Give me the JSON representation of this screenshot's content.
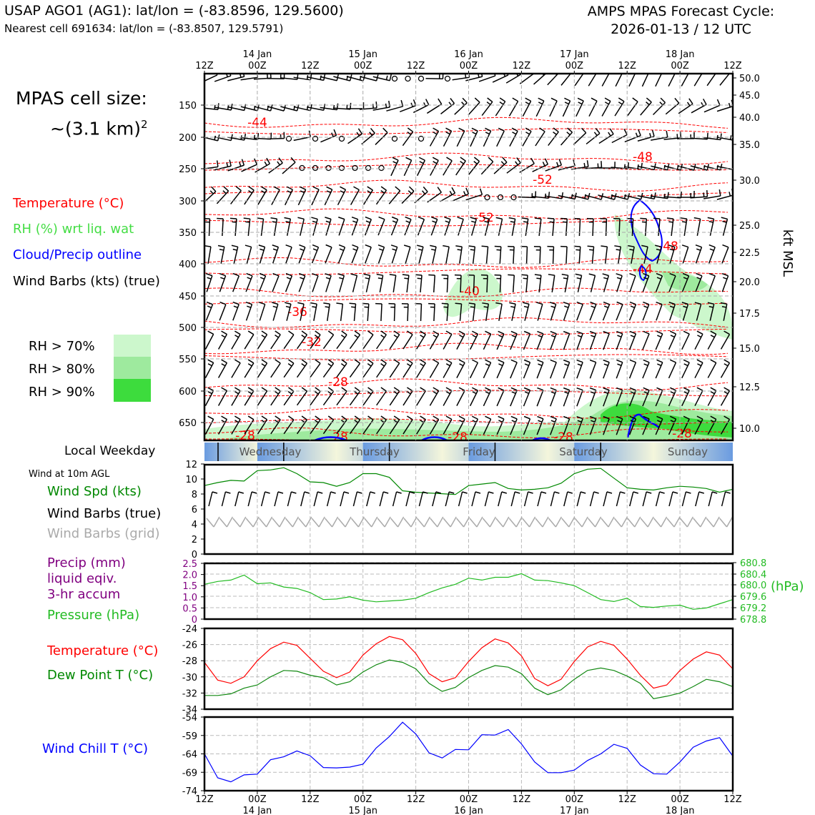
{
  "header": {
    "station": "USAP AGO1 (AG1): lat/lon = (-83.8596, 129.5600)",
    "nearest": "Nearest cell 691634: lat/lon = (-83.8507, 129.5791)",
    "cycle_line1": "AMPS MPAS Forecast Cycle:",
    "cycle_line2": "2026-01-13 / 12 UTC"
  },
  "cell_size": {
    "line1": "MPAS cell size:",
    "line2": "~(3.1 km)",
    "sup": "2"
  },
  "legend": {
    "temperature": "Temperature (°C)",
    "rh": "RH (%) wrt liq. wat",
    "cloud": "Cloud/Precip outline",
    "barbs": "Wind Barbs (kts) (true)",
    "rh70": "RH > 70%",
    "rh80": "RH > 80%",
    "rh90": "RH > 90%"
  },
  "colors": {
    "temp": "#ff0000",
    "rh": "#44dd44",
    "cloud": "#0000ff",
    "rh70": "#ccf7cc",
    "rh80": "#9eea9e",
    "rh90": "#3ddc3d",
    "dew": "#118811",
    "pressure": "#22bb22",
    "chill": "#0000ff",
    "precip": "#800080"
  },
  "time_axis": {
    "top_labels": [
      "12Z",
      "00Z",
      "12Z",
      "00Z",
      "12Z",
      "00Z",
      "12Z",
      "00Z",
      "12Z",
      "00Z",
      "12Z"
    ],
    "days": [
      "14 Jan",
      "15 Jan",
      "16 Jan",
      "17 Jan",
      "18 Jan"
    ]
  },
  "profile": {
    "pressure_ticks": [
      "150",
      "200",
      "250",
      "300",
      "350",
      "400",
      "450",
      "500",
      "550",
      "600",
      "650"
    ],
    "kft_ticks": [
      "50.0",
      "45.0",
      "40.0",
      "35.0",
      "30.0",
      "25.0",
      "22.5",
      "20.0",
      "17.5",
      "15.0",
      "12.5",
      "10.0"
    ],
    "kft_label": "kft MSL",
    "temp_labels": [
      "-44",
      "-48",
      "-52",
      "-52",
      "-48",
      "-44",
      "-40",
      "-36",
      "-32",
      "-28",
      "-28",
      "-28",
      "-28",
      "-28",
      "-28"
    ]
  },
  "weekday": {
    "label": "Local Weekday",
    "days": [
      "Wednesday",
      "Thursday",
      "Friday",
      "Saturday",
      "Sunday"
    ]
  },
  "panels": {
    "wind": {
      "title": "Wind at 10m AGL",
      "spd_label": "Wind Spd (kts)",
      "barbs_true": "Wind Barbs (true)",
      "barbs_grid": "Wind Barbs (grid)",
      "yticks": [
        "12",
        "10",
        "8",
        "6",
        "4",
        "2",
        "0"
      ]
    },
    "precip": {
      "label1": "Precip (mm)",
      "label2": "liquid eqiv.",
      "label3": "3-hr accum",
      "pressure_label": "Pressure (hPa)",
      "left_ticks": [
        "2.5",
        "2.0",
        "1.5",
        "1.0",
        "0.5",
        "0"
      ],
      "right_ticks": [
        "680.8",
        "680.4",
        "680.0",
        "679.6",
        "679.2",
        "678.8"
      ],
      "right_unit": "(hPa)"
    },
    "temp": {
      "temp_label": "Temperature (°C)",
      "dew_label": "Dew Point T (°C)",
      "yticks": [
        "-24",
        "-26",
        "-28",
        "-30",
        "-32",
        "-34"
      ]
    },
    "chill": {
      "label": "Wind Chill T (°C)",
      "yticks": [
        "-54",
        "-59",
        "-64",
        "-69",
        "-74"
      ]
    }
  },
  "chart_data": [
    {
      "type": "line",
      "title": "Wind Spd (kts)",
      "x_hours": [
        0,
        3,
        6,
        9,
        12,
        15,
        18,
        21,
        24,
        27,
        30,
        33,
        36,
        39,
        42,
        45,
        48,
        51,
        54,
        57,
        60,
        63,
        66,
        69,
        72,
        75,
        78,
        81,
        84,
        87,
        90,
        93,
        96,
        99,
        102,
        105,
        108,
        111,
        114,
        117,
        120
      ],
      "ylim": [
        0,
        12
      ],
      "series": [
        {
          "name": "Wind Spd (kts)",
          "values": [
            9.2,
            9.6,
            9.9,
            9.8,
            11.2,
            11.3,
            11.6,
            10.8,
            9.7,
            9.6,
            9.1,
            9.6,
            10.8,
            10.8,
            10.3,
            8.5,
            8.3,
            8.2,
            8.1,
            8.0,
            9.2,
            9.4,
            9.6,
            8.8,
            8.6,
            8.7,
            8.9,
            9.5,
            10.8,
            11.4,
            11.5,
            10.2,
            8.9,
            8.7,
            8.6,
            8.9,
            9.1,
            9.0,
            8.8,
            8.3,
            8.7
          ]
        }
      ]
    },
    {
      "type": "line",
      "title": "Pressure (hPa)",
      "x_hours": [
        0,
        3,
        6,
        9,
        12,
        15,
        18,
        21,
        24,
        27,
        30,
        33,
        36,
        39,
        42,
        45,
        48,
        51,
        54,
        57,
        60,
        63,
        66,
        69,
        72,
        75,
        78,
        81,
        84,
        87,
        90,
        93,
        96,
        99,
        102,
        105,
        108,
        111,
        114,
        117,
        120
      ],
      "ylim": [
        678.8,
        680.8
      ],
      "series": [
        {
          "name": "Pressure",
          "values": [
            680.05,
            680.15,
            680.2,
            680.38,
            680.07,
            680.1,
            679.95,
            679.9,
            679.75,
            679.5,
            679.52,
            679.6,
            679.48,
            679.42,
            679.45,
            679.48,
            679.55,
            679.75,
            679.92,
            680.05,
            680.27,
            680.2,
            680.3,
            680.3,
            680.43,
            680.2,
            680.18,
            680.1,
            680.0,
            679.75,
            679.5,
            679.43,
            679.55,
            679.25,
            679.22,
            679.27,
            679.3,
            679.15,
            679.2,
            679.35,
            679.5
          ]
        }
      ]
    },
    {
      "type": "line",
      "title": "Temperature / Dew Point (°C)",
      "x_hours": [
        0,
        3,
        6,
        9,
        12,
        15,
        18,
        21,
        24,
        27,
        30,
        33,
        36,
        39,
        42,
        45,
        48,
        51,
        54,
        57,
        60,
        63,
        66,
        69,
        72,
        75,
        78,
        81,
        84,
        87,
        90,
        93,
        96,
        99,
        102,
        105,
        108,
        111,
        114,
        117,
        120
      ],
      "ylim": [
        -34,
        -24
      ],
      "series": [
        {
          "name": "Temperature",
          "values": [
            -28.2,
            -30.4,
            -30.8,
            -30.0,
            -28.0,
            -26.5,
            -25.7,
            -26.1,
            -27.7,
            -29.3,
            -30.1,
            -29.4,
            -27.3,
            -25.9,
            -25.0,
            -25.4,
            -27.1,
            -29.6,
            -30.6,
            -30.1,
            -28.1,
            -26.4,
            -25.3,
            -25.8,
            -27.4,
            -30.2,
            -31.1,
            -30.3,
            -28.1,
            -26.3,
            -25.6,
            -26.1,
            -27.8,
            -29.8,
            -31.4,
            -31.0,
            -29.2,
            -27.8,
            -26.9,
            -27.3,
            -29.0
          ]
        },
        {
          "name": "Dew Point",
          "values": [
            -32.3,
            -32.3,
            -32.1,
            -31.4,
            -31.0,
            -30.0,
            -29.2,
            -29.3,
            -29.8,
            -30.1,
            -31.0,
            -30.6,
            -29.4,
            -28.5,
            -27.9,
            -28.2,
            -29.0,
            -30.8,
            -31.8,
            -31.3,
            -30.1,
            -29.2,
            -28.6,
            -28.8,
            -29.6,
            -31.4,
            -32.2,
            -31.6,
            -30.3,
            -29.2,
            -28.9,
            -29.2,
            -29.9,
            -30.8,
            -32.7,
            -32.4,
            -32.0,
            -31.2,
            -30.3,
            -30.6,
            -31.2
          ]
        }
      ]
    },
    {
      "type": "line",
      "title": "Wind Chill T (°C)",
      "x_hours": [
        0,
        3,
        6,
        9,
        12,
        15,
        18,
        21,
        24,
        27,
        30,
        33,
        36,
        39,
        42,
        45,
        48,
        51,
        54,
        57,
        60,
        63,
        66,
        69,
        72,
        75,
        78,
        81,
        84,
        87,
        90,
        93,
        96,
        99,
        102,
        105,
        108,
        111,
        114,
        117,
        120
      ],
      "ylim": [
        -74,
        -54
      ],
      "series": [
        {
          "name": "Wind Chill",
          "values": [
            -64.0,
            -70.5,
            -71.6,
            -69.7,
            -69.5,
            -65.6,
            -64.8,
            -63.2,
            -64.5,
            -67.7,
            -67.8,
            -67.6,
            -66.8,
            -62.4,
            -59.3,
            -55.4,
            -58.6,
            -63.7,
            -65.1,
            -62.8,
            -62.9,
            -58.8,
            -58.9,
            -57.4,
            -61.3,
            -66.2,
            -69.1,
            -69.1,
            -68.4,
            -65.8,
            -64.0,
            -61.4,
            -62.5,
            -67.0,
            -69.4,
            -69.5,
            -66.2,
            -62.2,
            -60.5,
            -59.6,
            -64.6
          ]
        }
      ]
    },
    {
      "type": "bar",
      "title": "Precip (mm) 3-hr accum",
      "categories": [],
      "values": [],
      "ylim": [
        0,
        2.5
      ]
    }
  ]
}
